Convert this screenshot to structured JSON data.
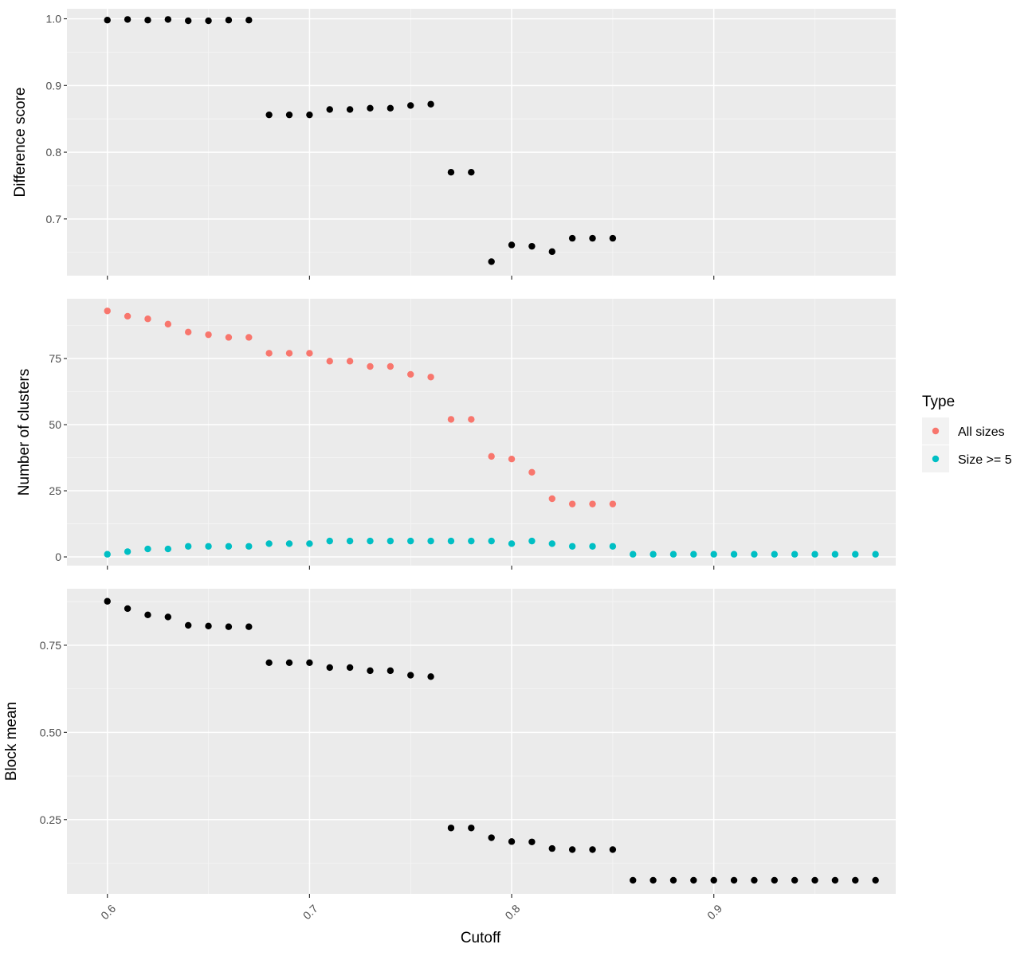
{
  "chart_data": [
    {
      "type": "scatter",
      "ylabel": "Difference score",
      "xlabel": "Cutoff",
      "xlim": [
        0.58,
        0.99
      ],
      "ylim": [
        0.615,
        1.015
      ],
      "yticks": [
        0.7,
        0.8,
        0.9,
        1.0
      ],
      "ytick_labels": [
        "0.7",
        "0.8",
        "0.9",
        "1.0"
      ],
      "series": [
        {
          "color": "#000000",
          "x": [
            0.6,
            0.61,
            0.62,
            0.63,
            0.64,
            0.65,
            0.66,
            0.67,
            0.68,
            0.69,
            0.7,
            0.71,
            0.72,
            0.73,
            0.74,
            0.75,
            0.76,
            0.77,
            0.78,
            0.79,
            0.8,
            0.81,
            0.82,
            0.83,
            0.84,
            0.85
          ],
          "y": [
            0.998,
            0.999,
            0.998,
            0.999,
            0.997,
            0.997,
            0.998,
            0.998,
            0.856,
            0.856,
            0.856,
            0.864,
            0.864,
            0.866,
            0.866,
            0.87,
            0.872,
            0.77,
            0.77,
            0.636,
            0.661,
            0.659,
            0.651,
            0.671,
            0.671,
            0.671
          ]
        }
      ]
    },
    {
      "type": "scatter",
      "ylabel": "Number of clusters",
      "xlabel": "Cutoff",
      "xlim": [
        0.58,
        0.99
      ],
      "ylim": [
        -3.3,
        97.6
      ],
      "yticks": [
        0,
        25,
        50,
        75
      ],
      "ytick_labels": [
        "0",
        "25",
        "50",
        "75"
      ],
      "series": [
        {
          "name": "All sizes",
          "color": "#F8766D",
          "x": [
            0.6,
            0.61,
            0.62,
            0.63,
            0.64,
            0.65,
            0.66,
            0.67,
            0.68,
            0.69,
            0.7,
            0.71,
            0.72,
            0.73,
            0.74,
            0.75,
            0.76,
            0.77,
            0.78,
            0.79,
            0.8,
            0.81,
            0.82,
            0.83,
            0.84,
            0.85
          ],
          "y": [
            93,
            91,
            90,
            88,
            85,
            84,
            83,
            83,
            77,
            77,
            77,
            74,
            74,
            72,
            72,
            69,
            68,
            52,
            52,
            38,
            37,
            32,
            22,
            20,
            20,
            20
          ]
        },
        {
          "name": "Size >= 5",
          "color": "#00BFC4",
          "x": [
            0.6,
            0.61,
            0.62,
            0.63,
            0.64,
            0.65,
            0.66,
            0.67,
            0.68,
            0.69,
            0.7,
            0.71,
            0.72,
            0.73,
            0.74,
            0.75,
            0.76,
            0.77,
            0.78,
            0.79,
            0.8,
            0.81,
            0.82,
            0.83,
            0.84,
            0.85,
            0.86,
            0.87,
            0.88,
            0.89,
            0.9,
            0.91,
            0.92,
            0.93,
            0.94,
            0.95,
            0.96,
            0.97,
            0.98
          ],
          "y": [
            1,
            2,
            3,
            3,
            4,
            4,
            4,
            4,
            5,
            5,
            5,
            6,
            6,
            6,
            6,
            6,
            6,
            6,
            6,
            6,
            5,
            6,
            5,
            4,
            4,
            4,
            1,
            1,
            1,
            1,
            1,
            1,
            1,
            1,
            1,
            1,
            1,
            1,
            1
          ]
        }
      ]
    },
    {
      "type": "scatter",
      "ylabel": "Block mean",
      "xlabel": "Cutoff",
      "xlim": [
        0.58,
        0.99
      ],
      "ylim": [
        0.037,
        0.912
      ],
      "yticks": [
        0.25,
        0.5,
        0.75
      ],
      "ytick_labels": [
        "0.25",
        "0.50",
        "0.75"
      ],
      "series": [
        {
          "color": "#000000",
          "x": [
            0.6,
            0.61,
            0.62,
            0.63,
            0.64,
            0.65,
            0.66,
            0.67,
            0.68,
            0.69,
            0.7,
            0.71,
            0.72,
            0.73,
            0.74,
            0.75,
            0.76,
            0.77,
            0.78,
            0.79,
            0.8,
            0.81,
            0.82,
            0.83,
            0.84,
            0.85,
            0.86,
            0.87,
            0.88,
            0.89,
            0.9,
            0.91,
            0.92,
            0.93,
            0.94,
            0.95,
            0.96,
            0.97,
            0.98
          ],
          "y": [
            0.876,
            0.855,
            0.837,
            0.831,
            0.807,
            0.805,
            0.803,
            0.803,
            0.7,
            0.7,
            0.7,
            0.686,
            0.686,
            0.677,
            0.677,
            0.664,
            0.66,
            0.226,
            0.226,
            0.198,
            0.187,
            0.186,
            0.167,
            0.164,
            0.164,
            0.164,
            0.076,
            0.076,
            0.076,
            0.076,
            0.076,
            0.076,
            0.076,
            0.076,
            0.076,
            0.076,
            0.076,
            0.076,
            0.076
          ]
        }
      ]
    }
  ],
  "x_axis": {
    "title": "Cutoff",
    "ticks": [
      0.6,
      0.7,
      0.8,
      0.9
    ],
    "tick_labels": [
      "0.6",
      "0.7",
      "0.8",
      "0.9"
    ],
    "tick_label_rotation_deg": -45
  },
  "legend": {
    "title": "Type",
    "position": "right",
    "items": [
      {
        "label": "All sizes",
        "color": "#F8766D"
      },
      {
        "label": "Size >= 5",
        "color": "#00BFC4"
      }
    ]
  },
  "theme": {
    "panel_background": "#EBEBEB",
    "grid_major": "#FFFFFF",
    "grid_minor": "#F5F5F5",
    "tick_color": "#333333"
  }
}
